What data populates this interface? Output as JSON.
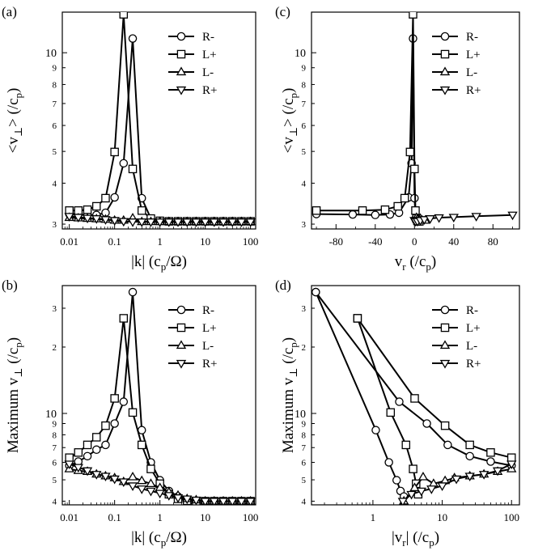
{
  "chart_data": [
    {
      "id": "a",
      "panel_label": "(a)",
      "type": "line",
      "x_scale": "log",
      "y_scale": "log",
      "xlim": [
        0.007,
        130
      ],
      "ylim": [
        2.9,
        13.3
      ],
      "x_ticks": [
        0.01,
        0.1,
        1,
        10,
        100
      ],
      "x_tick_labels": [
        "0.01",
        "0.1",
        "1",
        "10",
        "100"
      ],
      "y_ticks": [
        3,
        4,
        5,
        6,
        7,
        8,
        9,
        10
      ],
      "y_tick_labels": [
        "3",
        "4",
        "5",
        "6",
        "7",
        "8",
        "9",
        "10"
      ],
      "xlabel": {
        "pre": "|k| (c",
        "sub": "p",
        "post": "/Ω)"
      },
      "ylabel": {
        "pre": "<v",
        "sub": "⊥",
        "post": "> (/c",
        "sub2": "p",
        "post2": ")"
      },
      "legend": "top-right",
      "series": [
        {
          "name": "R-",
          "marker": "circle",
          "x": [
            0.01,
            0.0158,
            0.0251,
            0.0398,
            0.0631,
            0.1,
            0.158,
            0.251,
            0.398,
            0.631,
            1,
            1.58,
            2.51,
            3.98,
            6.31,
            10,
            15.8,
            25.1,
            39.8,
            63.1,
            100
          ],
          "y": [
            3.22,
            3.21,
            3.2,
            3.2,
            3.25,
            3.62,
            4.6,
            11.05,
            3.6,
            3.12,
            3.07,
            3.06,
            3.06,
            3.06,
            3.06,
            3.06,
            3.06,
            3.06,
            3.06,
            3.06,
            3.06
          ]
        },
        {
          "name": "L+",
          "marker": "square",
          "x": [
            0.01,
            0.0158,
            0.0251,
            0.0398,
            0.0631,
            0.1,
            0.158,
            0.251,
            0.398,
            0.631,
            1,
            1.58,
            2.51,
            3.98,
            6.31,
            10,
            15.8,
            25.1,
            39.8,
            63.1,
            100
          ],
          "y": [
            3.3,
            3.3,
            3.32,
            3.4,
            3.6,
            4.98,
            13.1,
            4.42,
            3.3,
            3.12,
            3.07,
            3.06,
            3.06,
            3.06,
            3.06,
            3.06,
            3.06,
            3.06,
            3.06,
            3.06,
            3.06
          ]
        },
        {
          "name": "L-",
          "marker": "triangle-up",
          "x": [
            0.01,
            0.0158,
            0.0251,
            0.0398,
            0.0631,
            0.1,
            0.158,
            0.251,
            0.398,
            0.631,
            1,
            1.58,
            2.51,
            3.98,
            6.31,
            10,
            15.8,
            25.1,
            39.8,
            63.1,
            100
          ],
          "y": [
            3.14,
            3.13,
            3.12,
            3.11,
            3.1,
            3.08,
            3.08,
            3.13,
            3.05,
            3.05,
            3.05,
            3.05,
            3.05,
            3.05,
            3.05,
            3.05,
            3.05,
            3.05,
            3.05,
            3.05,
            3.05
          ]
        },
        {
          "name": "R+",
          "marker": "triangle-down",
          "x": [
            0.01,
            0.0158,
            0.0251,
            0.0398,
            0.0631,
            0.1,
            0.158,
            0.251,
            0.398,
            0.631,
            1,
            1.58,
            2.51,
            3.98,
            6.31,
            10,
            15.8,
            25.1,
            39.8,
            63.1,
            100
          ],
          "y": [
            3.17,
            3.15,
            3.13,
            3.12,
            3.1,
            3.08,
            3.06,
            3.05,
            3.05,
            3.05,
            3.05,
            3.05,
            3.05,
            3.05,
            3.05,
            3.05,
            3.05,
            3.05,
            3.05,
            3.05,
            3.05
          ]
        }
      ]
    },
    {
      "id": "c",
      "panel_label": "(c)",
      "type": "line",
      "x_scale": "linear",
      "y_scale": "log",
      "xlim": [
        -105,
        107
      ],
      "ylim": [
        2.9,
        13.3
      ],
      "x_ticks": [
        -80,
        -40,
        0,
        40,
        80
      ],
      "x_tick_labels": [
        "-80",
        "-40",
        "0",
        "40",
        "80"
      ],
      "y_ticks": [
        3,
        4,
        5,
        6,
        7,
        8,
        9,
        10
      ],
      "y_tick_labels": [
        "3",
        "4",
        "5",
        "6",
        "7",
        "8",
        "9",
        "10"
      ],
      "xlabel": {
        "pre": "v",
        "sub": "r",
        "post": " (/c",
        "sub2": "p",
        "post2": ")"
      },
      "ylabel": {
        "pre": "<v",
        "sub": "⊥",
        "post": "> (/c",
        "sub2": "p",
        "post2": ")"
      },
      "legend": "top-right",
      "series": [
        {
          "name": "R-",
          "marker": "circle",
          "x": [
            -100,
            -63,
            -40,
            -25,
            -15.8,
            -6,
            -3,
            -1.5,
            0,
            1.2,
            2,
            3,
            5
          ],
          "y": [
            3.22,
            3.21,
            3.2,
            3.21,
            3.25,
            3.62,
            4.6,
            11.05,
            3.6,
            3.12,
            3.07,
            3.06,
            3.06
          ]
        },
        {
          "name": "L+",
          "marker": "square",
          "x": [
            -100,
            -53,
            -30,
            -17,
            -10,
            -4.5,
            -1.5,
            0,
            1,
            2,
            3,
            4,
            5
          ],
          "y": [
            3.3,
            3.3,
            3.32,
            3.4,
            3.6,
            4.98,
            13.1,
            4.42,
            3.3,
            3.12,
            3.07,
            3.06,
            3.06
          ]
        },
        {
          "name": "L-",
          "marker": "triangle-up",
          "x": [
            2,
            3,
            4,
            5,
            6,
            8,
            11
          ],
          "y": [
            3.14,
            3.11,
            3.08,
            3.1,
            3.12,
            3.08,
            3.08
          ]
        },
        {
          "name": "R+",
          "marker": "triangle-down",
          "x": [
            0,
            1,
            3,
            6,
            10,
            16,
            25,
            40,
            63,
            100
          ],
          "y": [
            3.08,
            3.06,
            3.06,
            3.08,
            3.1,
            3.12,
            3.14,
            3.15,
            3.17,
            3.2
          ]
        }
      ]
    },
    {
      "id": "b",
      "panel_label": "(b)",
      "type": "line",
      "x_scale": "log",
      "y_scale": "log",
      "xlim": [
        0.007,
        130
      ],
      "ylim": [
        3.85,
        38
      ],
      "x_ticks": [
        0.01,
        0.1,
        1,
        10,
        100
      ],
      "x_tick_labels": [
        "0.01",
        "0.1",
        "1",
        "10",
        "100"
      ],
      "y_ticks": [
        4,
        5,
        6,
        7,
        8,
        9,
        10
      ],
      "y_tick_labels": [
        "4",
        "5",
        "6",
        "7",
        "8",
        "9",
        "10"
      ],
      "y_ticks_upper": [
        20,
        30
      ],
      "y_tick_labels_upper": [
        "2",
        "3"
      ],
      "xlabel": {
        "pre": "|k| (c",
        "sub": "p",
        "post": "/Ω)"
      },
      "ylabel": {
        "pre": "Maximum v",
        "sub": "⊥",
        "post": " (/c",
        "sub2": "p",
        "post2": ")"
      },
      "legend": "top-right",
      "series": [
        {
          "name": "R-",
          "marker": "circle",
          "x": [
            0.01,
            0.0158,
            0.0251,
            0.0398,
            0.0631,
            0.1,
            0.158,
            0.251,
            0.398,
            0.631,
            1,
            1.58,
            2.51,
            3.98,
            6.31,
            10,
            15.8,
            25.1,
            39.8,
            63.1,
            100
          ],
          "y": [
            5.8,
            6.05,
            6.4,
            6.85,
            7.2,
            9.0,
            11.3,
            35.5,
            8.4,
            6.0,
            4.98,
            4.45,
            4.2,
            4.05,
            4.0,
            4.0,
            4.0,
            4.0,
            4.0,
            4.0,
            4.0
          ]
        },
        {
          "name": "L+",
          "marker": "square",
          "x": [
            0.01,
            0.0158,
            0.0251,
            0.0398,
            0.0631,
            0.1,
            0.158,
            0.251,
            0.398,
            0.631,
            1,
            1.58,
            2.51,
            3.98,
            6.31,
            10,
            15.8,
            25.1,
            39.8,
            63.1,
            100
          ],
          "y": [
            6.3,
            6.65,
            7.2,
            7.8,
            8.8,
            11.7,
            27.0,
            10.1,
            7.2,
            5.6,
            4.8,
            4.3,
            4.1,
            4.02,
            4.0,
            4.0,
            4.0,
            4.0,
            4.0,
            4.0,
            4.0
          ]
        },
        {
          "name": "L-",
          "marker": "triangle-up",
          "x": [
            0.01,
            0.0158,
            0.0251,
            0.0398,
            0.0631,
            0.1,
            0.158,
            0.251,
            0.398,
            0.631,
            1,
            1.58,
            2.51,
            3.98,
            6.31,
            10,
            15.8,
            25.1,
            39.8,
            63.1,
            100
          ],
          "y": [
            5.6,
            5.5,
            5.45,
            5.3,
            5.2,
            5.1,
            4.9,
            5.15,
            4.95,
            4.8,
            4.6,
            4.4,
            4.25,
            4.1,
            4.05,
            4.0,
            4.0,
            4.0,
            4.0,
            4.0,
            4.0
          ]
        },
        {
          "name": "R+",
          "marker": "triangle-down",
          "x": [
            0.01,
            0.0158,
            0.0251,
            0.0398,
            0.0631,
            0.1,
            0.158,
            0.251,
            0.398,
            0.631,
            1,
            1.58,
            2.51,
            3.98,
            6.31,
            10,
            15.8,
            25.1,
            39.8,
            63.1,
            100
          ],
          "y": [
            5.9,
            5.7,
            5.5,
            5.3,
            5.2,
            5.05,
            4.9,
            4.7,
            4.55,
            4.45,
            4.35,
            4.25,
            4.15,
            4.1,
            4.05,
            4.0,
            4.0,
            4.0,
            4.0,
            4.0,
            4.0
          ]
        }
      ]
    },
    {
      "id": "d",
      "panel_label": "(d)",
      "type": "line",
      "x_scale": "log",
      "y_scale": "log",
      "xlim": [
        0.13,
        130
      ],
      "ylim": [
        3.85,
        38
      ],
      "x_ticks": [
        1,
        10,
        100
      ],
      "x_tick_labels": [
        "1",
        "10",
        "100"
      ],
      "y_ticks": [
        4,
        5,
        6,
        7,
        8,
        9,
        10
      ],
      "y_tick_labels": [
        "4",
        "5",
        "6",
        "7",
        "8",
        "9",
        "10"
      ],
      "y_ticks_upper": [
        20,
        30
      ],
      "y_tick_labels_upper": [
        "2",
        "3"
      ],
      "xlabel": {
        "pre": "|v",
        "sub": "r",
        "post": "| (/c",
        "sub2": "p",
        "post2": ")"
      },
      "ylabel": {
        "pre": "Maximum v",
        "sub": "⊥",
        "post": " (/c",
        "sub2": "p",
        "post2": ")"
      },
      "legend": "top-right",
      "series": [
        {
          "name": "R-",
          "marker": "circle",
          "branches": [
            {
              "x": [
                0.15,
                1.1,
                1.7,
                2.2,
                2.5,
                2.8
              ],
              "y": [
                35.5,
                8.4,
                6.0,
                4.98,
                4.45,
                4.2
              ]
            },
            {
              "x": [
                0.15,
                2.4,
                6.0,
                12.0,
                25.0,
                50.0,
                100.0
              ],
              "y": [
                35.5,
                11.3,
                9.0,
                7.2,
                6.4,
                6.05,
                5.8
              ]
            }
          ]
        },
        {
          "name": "L+",
          "marker": "square",
          "branches": [
            {
              "x": [
                0.6,
                1.8,
                3.0,
                3.8,
                4.2,
                4.5
              ],
              "y": [
                27.0,
                10.1,
                7.2,
                5.6,
                4.8,
                4.3
              ]
            },
            {
              "x": [
                0.6,
                4.0,
                11.0,
                25.0,
                50.0,
                100.0
              ],
              "y": [
                27.0,
                11.7,
                8.8,
                7.2,
                6.65,
                6.3
              ]
            }
          ]
        },
        {
          "name": "L-",
          "marker": "triangle-up",
          "x": [
            2.8,
            4.0,
            5.3,
            7.5,
            11,
            15,
            25,
            40,
            63,
            100
          ],
          "y": [
            4.0,
            4.6,
            5.15,
            4.8,
            4.95,
            5.1,
            5.2,
            5.3,
            5.45,
            5.6
          ]
        },
        {
          "name": "R+",
          "marker": "triangle-down",
          "x": [
            2.7,
            3.6,
            5.0,
            7.0,
            10,
            16,
            25,
            40,
            63,
            100
          ],
          "y": [
            4.0,
            4.3,
            4.45,
            4.55,
            4.7,
            5.05,
            5.2,
            5.3,
            5.5,
            5.9
          ]
        }
      ]
    }
  ]
}
